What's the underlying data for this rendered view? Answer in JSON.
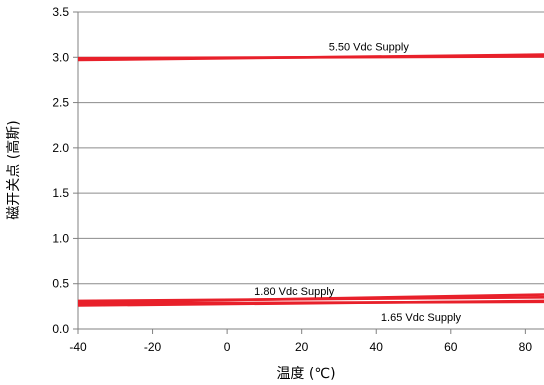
{
  "chart_data": {
    "type": "line",
    "title": "",
    "xlabel": "温度 (℃)",
    "ylabel": "磁开关点 (高斯)",
    "xlim": [
      -40,
      85
    ],
    "ylim": [
      0,
      3.5
    ],
    "x_ticks": [
      "-40",
      "-20",
      "0",
      "20",
      "40",
      "60",
      "80"
    ],
    "y_ticks": [
      "0.0",
      "0.5",
      "1.0",
      "1.5",
      "2.0",
      "2.5",
      "3.0",
      "3.5"
    ],
    "grid": true,
    "legend": "none",
    "series": [
      {
        "x": [
          -40,
          85
        ],
        "y": [
          2.97,
          3.03
        ],
        "color": "#e8202a"
      },
      {
        "x": [
          -40,
          85
        ],
        "y": [
          2.99,
          3.01
        ],
        "color": "#e8202a"
      },
      {
        "x": [
          -40,
          85
        ],
        "y": [
          0.29,
          0.38
        ],
        "color": "#e8202a"
      },
      {
        "x": [
          -40,
          85
        ],
        "y": [
          0.31,
          0.35
        ],
        "color": "#e8202a"
      },
      {
        "x": [
          -40,
          85
        ],
        "y": [
          0.26,
          0.31
        ],
        "color": "#e8202a"
      },
      {
        "x": [
          -40,
          85
        ],
        "y": [
          0.28,
          0.3
        ],
        "color": "#e8202a"
      }
    ],
    "annotations": [
      {
        "text": "5.50 Vdc Supply",
        "x": 38,
        "y": 3.12
      },
      {
        "text": "1.80 Vdc Supply",
        "x": 18,
        "y": 0.42
      },
      {
        "text": "1.65 Vdc Supply",
        "x": 52,
        "y": 0.13
      }
    ]
  }
}
